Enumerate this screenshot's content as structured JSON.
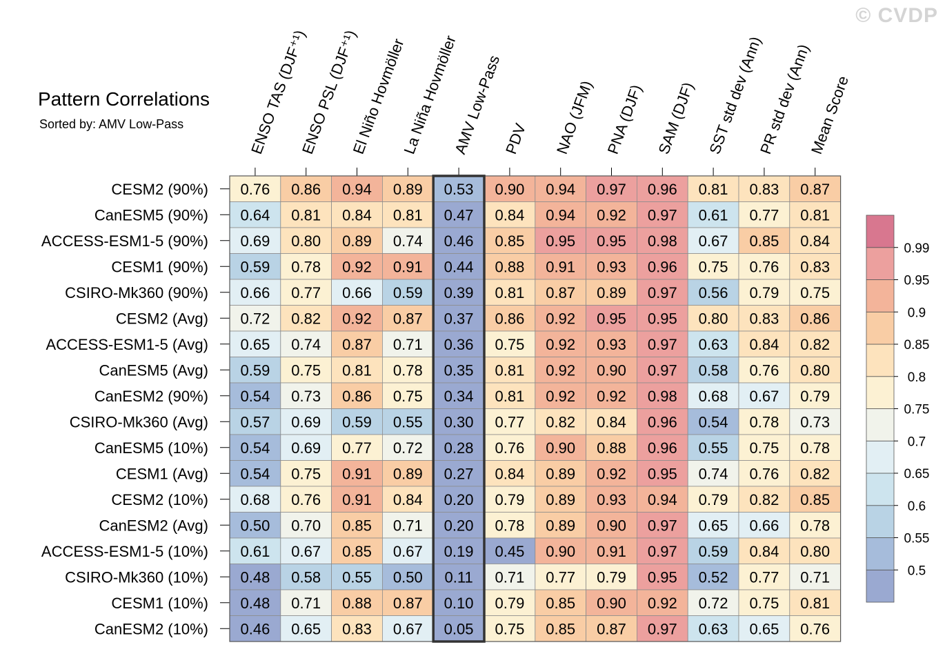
{
  "watermark": "© CVDP",
  "chart_data": {
    "type": "heatmap",
    "title": "Pattern Correlations",
    "subtitle": "Sorted by: AMV Low-Pass",
    "columns": [
      "ENSO TAS (DJF⁺¹)",
      "ENSO PSL (DJF⁺¹)",
      "El Niño Hovmöller",
      "La Niña Hovmöller",
      "AMV Low-Pass",
      "PDV",
      "NAO (JFM)",
      "PNA (DJF)",
      "SAM (DJF)",
      "SST std dev (Ann)",
      "PR std dev (Ann)",
      "Mean Score"
    ],
    "rows": [
      "CESM2 (90%)",
      "CanESM5 (90%)",
      "ACCESS-ESM1-5 (90%)",
      "CESM1 (90%)",
      "CSIRO-Mk360 (90%)",
      "CESM2 (Avg)",
      "ACCESS-ESM1-5 (Avg)",
      "CanESM5 (Avg)",
      "CanESM2 (90%)",
      "CSIRO-Mk360 (Avg)",
      "CanESM5 (10%)",
      "CESM1 (Avg)",
      "CESM2 (10%)",
      "CanESM2 (Avg)",
      "ACCESS-ESM1-5 (10%)",
      "CSIRO-Mk360 (10%)",
      "CESM1 (10%)",
      "CanESM2 (10%)"
    ],
    "values": [
      [
        "0.76",
        "0.86",
        "0.94",
        "0.89",
        "0.53",
        "0.90",
        "0.94",
        "0.97",
        "0.96",
        "0.81",
        "0.83",
        "0.87"
      ],
      [
        "0.64",
        "0.81",
        "0.84",
        "0.81",
        "0.47",
        "0.84",
        "0.94",
        "0.92",
        "0.97",
        "0.61",
        "0.77",
        "0.81"
      ],
      [
        "0.69",
        "0.80",
        "0.89",
        "0.74",
        "0.46",
        "0.85",
        "0.95",
        "0.95",
        "0.98",
        "0.67",
        "0.85",
        "0.84"
      ],
      [
        "0.59",
        "0.78",
        "0.92",
        "0.91",
        "0.44",
        "0.88",
        "0.91",
        "0.93",
        "0.96",
        "0.75",
        "0.76",
        "0.83"
      ],
      [
        "0.66",
        "0.77",
        "0.66",
        "0.59",
        "0.39",
        "0.81",
        "0.87",
        "0.89",
        "0.97",
        "0.56",
        "0.79",
        "0.75"
      ],
      [
        "0.72",
        "0.82",
        "0.92",
        "0.87",
        "0.37",
        "0.86",
        "0.92",
        "0.95",
        "0.95",
        "0.80",
        "0.83",
        "0.86"
      ],
      [
        "0.65",
        "0.74",
        "0.87",
        "0.71",
        "0.36",
        "0.75",
        "0.92",
        "0.93",
        "0.97",
        "0.63",
        "0.84",
        "0.82"
      ],
      [
        "0.59",
        "0.75",
        "0.81",
        "0.78",
        "0.35",
        "0.81",
        "0.92",
        "0.90",
        "0.97",
        "0.58",
        "0.76",
        "0.80"
      ],
      [
        "0.54",
        "0.73",
        "0.86",
        "0.75",
        "0.34",
        "0.81",
        "0.92",
        "0.92",
        "0.98",
        "0.68",
        "0.67",
        "0.79"
      ],
      [
        "0.57",
        "0.69",
        "0.59",
        "0.55",
        "0.30",
        "0.77",
        "0.82",
        "0.84",
        "0.96",
        "0.54",
        "0.78",
        "0.73"
      ],
      [
        "0.54",
        "0.69",
        "0.77",
        "0.72",
        "0.28",
        "0.76",
        "0.90",
        "0.88",
        "0.96",
        "0.55",
        "0.75",
        "0.78"
      ],
      [
        "0.54",
        "0.75",
        "0.91",
        "0.89",
        "0.27",
        "0.84",
        "0.89",
        "0.92",
        "0.95",
        "0.74",
        "0.76",
        "0.82"
      ],
      [
        "0.68",
        "0.76",
        "0.91",
        "0.84",
        "0.20",
        "0.79",
        "0.89",
        "0.93",
        "0.94",
        "0.79",
        "0.82",
        "0.85"
      ],
      [
        "0.50",
        "0.70",
        "0.85",
        "0.71",
        "0.20",
        "0.78",
        "0.89",
        "0.90",
        "0.97",
        "0.65",
        "0.66",
        "0.78"
      ],
      [
        "0.61",
        "0.67",
        "0.85",
        "0.67",
        "0.19",
        "0.45",
        "0.90",
        "0.91",
        "0.97",
        "0.59",
        "0.84",
        "0.80"
      ],
      [
        "0.48",
        "0.58",
        "0.55",
        "0.50",
        "0.11",
        "0.71",
        "0.77",
        "0.79",
        "0.95",
        "0.52",
        "0.77",
        "0.71"
      ],
      [
        "0.48",
        "0.71",
        "0.88",
        "0.87",
        "0.10",
        "0.79",
        "0.85",
        "0.90",
        "0.92",
        "0.72",
        "0.75",
        "0.81"
      ],
      [
        "0.46",
        "0.65",
        "0.83",
        "0.67",
        "0.05",
        "0.75",
        "0.85",
        "0.87",
        "0.97",
        "0.63",
        "0.65",
        "0.76"
      ]
    ],
    "sorted_column": "AMV Low-Pass",
    "colorbar": {
      "levels": [
        0.5,
        0.55,
        0.6,
        0.65,
        0.7,
        0.75,
        0.8,
        0.85,
        0.9,
        0.95,
        0.99
      ],
      "labels": [
        "0.5",
        "0.55",
        "0.6",
        "0.65",
        "0.7",
        "0.75",
        "0.8",
        "0.85",
        "0.9",
        "0.95",
        "0.99"
      ],
      "colors": [
        "#9aa9d1",
        "#a6bcdb",
        "#b9d3e5",
        "#cde4ee",
        "#e2eff4",
        "#f1f3eb",
        "#fcf1d3",
        "#fde3bd",
        "#f9cda5",
        "#f3b49a",
        "#eca09e",
        "#d8778f"
      ]
    }
  }
}
